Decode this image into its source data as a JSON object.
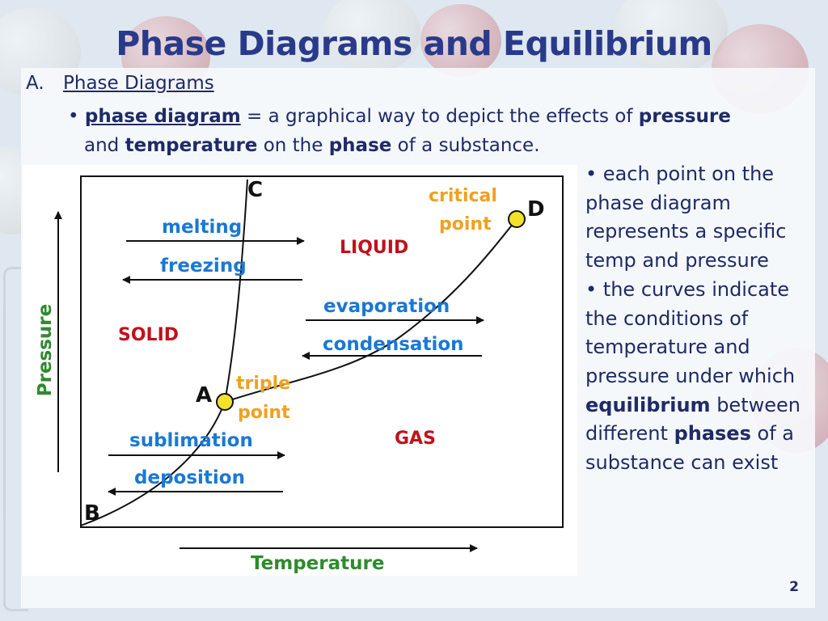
{
  "slide": {
    "title": "Phase Diagrams and Equilibrium",
    "section_letter": "A.",
    "section_title": "Phase Diagrams",
    "bullet": {
      "bullet_char": "•",
      "term": "phase diagram",
      "text1": " = a graphical way to depict the effects of ",
      "w_pressure": "pressure",
      "text2": "and ",
      "w_temperature": "temperature",
      "text3": " on the ",
      "w_phase": "phase",
      "text4": " of a substance."
    },
    "page_number": "2"
  },
  "diagram": {
    "axis_y": "Pressure",
    "axis_x": "Temperature",
    "points": {
      "A": "A",
      "B": "B",
      "C": "C",
      "D": "D"
    },
    "regions": {
      "solid": "SOLID",
      "liquid": "LIQUID",
      "gas": "GAS"
    },
    "processes": {
      "melting": "melting",
      "freezing": "freezing",
      "evaporation": "evaporation",
      "condensation": "condensation",
      "sublimation": "sublimation",
      "deposition": "deposition"
    },
    "special": {
      "critical1": "critical",
      "critical2": "point",
      "triple1": "triple",
      "triple2": "point"
    },
    "colors": {
      "process": "#1a78d4",
      "region": "#c0111b",
      "special": "#f0a020",
      "axis_label": "#2f8a2f",
      "marker": "#f2e22a"
    }
  },
  "notes": {
    "b1": "each point on the phase diagram represents a specific temp and pressure",
    "b2_pre": "the curves indicate the conditions of temperature and pressure under which ",
    "b2_bold1": "equilibrium",
    "b2_mid": " between different ",
    "b2_bold2": "phases",
    "b2_post": " of a substance can exist",
    "bullet_char": "•"
  }
}
